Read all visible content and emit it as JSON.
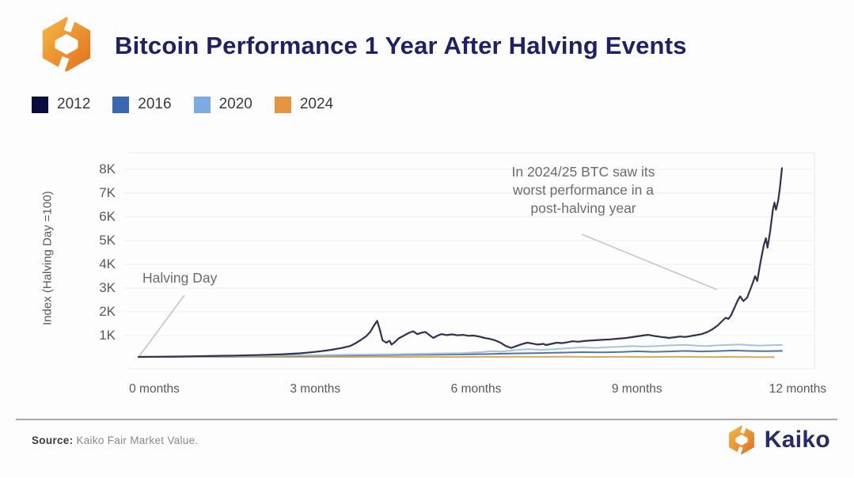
{
  "header": {
    "title": "Bitcoin Performance 1 Year After Halving Events"
  },
  "legend": {
    "items": [
      {
        "label": "2012",
        "color": "#0c0d3f"
      },
      {
        "label": "2016",
        "color": "#3a67b4"
      },
      {
        "label": "2020",
        "color": "#7cabe3"
      },
      {
        "label": "2024",
        "color": "#e5953d"
      }
    ]
  },
  "chart_data": {
    "type": "line",
    "title": "Bitcoin Performance 1 Year After Halving Events",
    "xlabel": "",
    "ylabel": "Index (Halving Day =100)",
    "x_unit": "months since halving",
    "xlim_months": [
      0,
      12.5
    ],
    "ylim": [
      0,
      8400
    ],
    "grid": "horizontal",
    "legend_position": "top-left",
    "xticks": [
      {
        "label": "0 months",
        "month": 0
      },
      {
        "label": "3 months",
        "month": 3
      },
      {
        "label": "6 months",
        "month": 6
      },
      {
        "label": "9 months",
        "month": 9
      },
      {
        "label": "12 months",
        "month": 12
      }
    ],
    "yticks": [
      {
        "label": "1K",
        "value": 1000
      },
      {
        "label": "2K",
        "value": 2000
      },
      {
        "label": "3K",
        "value": 3000
      },
      {
        "label": "4K",
        "value": 4000
      },
      {
        "label": "5K",
        "value": 5000
      },
      {
        "label": "6K",
        "value": 6000
      },
      {
        "label": "7K",
        "value": 7000
      },
      {
        "label": "8K",
        "value": 8000
      }
    ],
    "annotations": [
      {
        "text": "Halving Day",
        "target": "start of all series (index = 100)"
      },
      {
        "text": "In 2024/25 BTC saw its worst performance in a post-halving year",
        "target": "2024 series at right edge"
      }
    ],
    "series": [
      {
        "name": "2024",
        "color": "#d9ad58",
        "points": [
          [
            0,
            100
          ],
          [
            0.5,
            98
          ],
          [
            1,
            104
          ],
          [
            1.5,
            99
          ],
          [
            2,
            103
          ],
          [
            2.5,
            97
          ],
          [
            3,
            101
          ],
          [
            3.5,
            105
          ],
          [
            4,
            99
          ],
          [
            4.5,
            103
          ],
          [
            5,
            98
          ],
          [
            5.5,
            102
          ],
          [
            6,
            97
          ],
          [
            6.5,
            104
          ],
          [
            7,
            108
          ],
          [
            7.5,
            102
          ],
          [
            8,
            106
          ],
          [
            8.5,
            99
          ],
          [
            9,
            103
          ],
          [
            9.5,
            98
          ],
          [
            10,
            102
          ],
          [
            10.5,
            97
          ],
          [
            11,
            100
          ],
          [
            11.4,
            95
          ],
          [
            11.85,
            88
          ]
        ]
      },
      {
        "name": "2016",
        "color": "#51749f",
        "points": [
          [
            0,
            100
          ],
          [
            0.5,
            105
          ],
          [
            1,
            112
          ],
          [
            1.5,
            120
          ],
          [
            2,
            128
          ],
          [
            2.5,
            136
          ],
          [
            3,
            145
          ],
          [
            3.5,
            155
          ],
          [
            4,
            165
          ],
          [
            4.5,
            175
          ],
          [
            5,
            185
          ],
          [
            5.5,
            195
          ],
          [
            6,
            205
          ],
          [
            6.5,
            220
          ],
          [
            7,
            245
          ],
          [
            7.5,
            265
          ],
          [
            8,
            285
          ],
          [
            8.3,
            300
          ],
          [
            8.6,
            290
          ],
          [
            9,
            310
          ],
          [
            9.3,
            335
          ],
          [
            9.6,
            315
          ],
          [
            9.9,
            330
          ],
          [
            10.2,
            355
          ],
          [
            10.5,
            330
          ],
          [
            10.8,
            345
          ],
          [
            11.1,
            370
          ],
          [
            11.4,
            350
          ],
          [
            11.7,
            340
          ],
          [
            12,
            355
          ]
        ]
      },
      {
        "name": "2020",
        "color": "#a5c3e1",
        "points": [
          [
            0,
            100
          ],
          [
            0.5,
            108
          ],
          [
            1,
            118
          ],
          [
            1.5,
            130
          ],
          [
            2,
            142
          ],
          [
            2.5,
            155
          ],
          [
            3,
            168
          ],
          [
            3.5,
            180
          ],
          [
            4,
            195
          ],
          [
            4.5,
            210
          ],
          [
            5,
            225
          ],
          [
            5.5,
            240
          ],
          [
            6,
            258
          ],
          [
            6.4,
            300
          ],
          [
            6.6,
            345
          ],
          [
            6.75,
            320
          ],
          [
            6.9,
            360
          ],
          [
            7.1,
            400
          ],
          [
            7.3,
            430
          ],
          [
            7.5,
            395
          ],
          [
            7.7,
            420
          ],
          [
            7.9,
            450
          ],
          [
            8.1,
            480
          ],
          [
            8.3,
            510
          ],
          [
            8.5,
            480
          ],
          [
            8.7,
            505
          ],
          [
            9,
            530
          ],
          [
            9.2,
            560
          ],
          [
            9.4,
            535
          ],
          [
            9.6,
            550
          ],
          [
            9.8,
            575
          ],
          [
            10,
            590
          ],
          [
            10.2,
            610
          ],
          [
            10.4,
            575
          ],
          [
            10.6,
            555
          ],
          [
            10.8,
            585
          ],
          [
            11,
            605
          ],
          [
            11.2,
            625
          ],
          [
            11.4,
            595
          ],
          [
            11.6,
            575
          ],
          [
            11.8,
            595
          ],
          [
            12,
            605
          ]
        ]
      },
      {
        "name": "2012",
        "color": "#30324f",
        "points": [
          [
            0,
            100
          ],
          [
            0.3,
            108
          ],
          [
            0.6,
            115
          ],
          [
            0.9,
            122
          ],
          [
            1.2,
            132
          ],
          [
            1.5,
            145
          ],
          [
            1.8,
            158
          ],
          [
            2.1,
            172
          ],
          [
            2.4,
            190
          ],
          [
            2.7,
            215
          ],
          [
            3,
            250
          ],
          [
            3.2,
            290
          ],
          [
            3.4,
            340
          ],
          [
            3.6,
            400
          ],
          [
            3.8,
            480
          ],
          [
            3.95,
            560
          ],
          [
            4.05,
            680
          ],
          [
            4.15,
            820
          ],
          [
            4.25,
            980
          ],
          [
            4.32,
            1150
          ],
          [
            4.4,
            1450
          ],
          [
            4.45,
            1620
          ],
          [
            4.5,
            1250
          ],
          [
            4.55,
            800
          ],
          [
            4.62,
            700
          ],
          [
            4.68,
            780
          ],
          [
            4.72,
            620
          ],
          [
            4.78,
            720
          ],
          [
            4.85,
            880
          ],
          [
            4.95,
            1000
          ],
          [
            5.05,
            1120
          ],
          [
            5.12,
            1180
          ],
          [
            5.2,
            1060
          ],
          [
            5.28,
            1120
          ],
          [
            5.35,
            1150
          ],
          [
            5.45,
            980
          ],
          [
            5.5,
            900
          ],
          [
            5.58,
            1000
          ],
          [
            5.65,
            1060
          ],
          [
            5.75,
            1020
          ],
          [
            5.85,
            1050
          ],
          [
            5.95,
            1010
          ],
          [
            6.05,
            1030
          ],
          [
            6.15,
            990
          ],
          [
            6.25,
            1000
          ],
          [
            6.35,
            960
          ],
          [
            6.45,
            900
          ],
          [
            6.55,
            860
          ],
          [
            6.65,
            800
          ],
          [
            6.75,
            700
          ],
          [
            6.85,
            560
          ],
          [
            6.95,
            480
          ],
          [
            7.05,
            560
          ],
          [
            7.15,
            640
          ],
          [
            7.25,
            700
          ],
          [
            7.35,
            660
          ],
          [
            7.45,
            620
          ],
          [
            7.55,
            650
          ],
          [
            7.6,
            600
          ],
          [
            7.7,
            650
          ],
          [
            7.8,
            700
          ],
          [
            7.9,
            680
          ],
          [
            8,
            720
          ],
          [
            8.1,
            760
          ],
          [
            8.2,
            740
          ],
          [
            8.35,
            780
          ],
          [
            8.5,
            800
          ],
          [
            8.65,
            820
          ],
          [
            8.8,
            840
          ],
          [
            8.95,
            870
          ],
          [
            9.1,
            900
          ],
          [
            9.25,
            950
          ],
          [
            9.4,
            1000
          ],
          [
            9.5,
            1030
          ],
          [
            9.6,
            990
          ],
          [
            9.75,
            940
          ],
          [
            9.9,
            900
          ],
          [
            10,
            930
          ],
          [
            10.1,
            960
          ],
          [
            10.2,
            940
          ],
          [
            10.35,
            1000
          ],
          [
            10.5,
            1060
          ],
          [
            10.6,
            1140
          ],
          [
            10.7,
            1260
          ],
          [
            10.8,
            1420
          ],
          [
            10.88,
            1600
          ],
          [
            10.95,
            1750
          ],
          [
            11,
            1700
          ],
          [
            11.05,
            1850
          ],
          [
            11.1,
            2100
          ],
          [
            11.18,
            2500
          ],
          [
            11.22,
            2650
          ],
          [
            11.28,
            2450
          ],
          [
            11.35,
            2600
          ],
          [
            11.42,
            3000
          ],
          [
            11.5,
            3500
          ],
          [
            11.54,
            3300
          ],
          [
            11.6,
            4100
          ],
          [
            11.66,
            4800
          ],
          [
            11.7,
            5100
          ],
          [
            11.73,
            4700
          ],
          [
            11.78,
            5400
          ],
          [
            11.83,
            6300
          ],
          [
            11.86,
            6600
          ],
          [
            11.89,
            6300
          ],
          [
            11.93,
            6700
          ],
          [
            11.96,
            7200
          ],
          [
            12,
            8050
          ]
        ]
      }
    ]
  },
  "footer": {
    "source_label": "Source:",
    "source_text": "Kaiko Fair Market Value.",
    "brand": "Kaiko"
  },
  "colors": {
    "title_navy": "#1e2166",
    "brand_navy": "#272c68",
    "logo_orange_light": "#f7b844",
    "logo_orange_dark": "#e06f1f",
    "axis_text": "#58595b",
    "annotation_text": "#6a6b6d",
    "callout_line": "#c5c5c9",
    "gridline": "#f2f2f4",
    "plot_border": "#ececef",
    "divider": "#a9a9ad"
  }
}
